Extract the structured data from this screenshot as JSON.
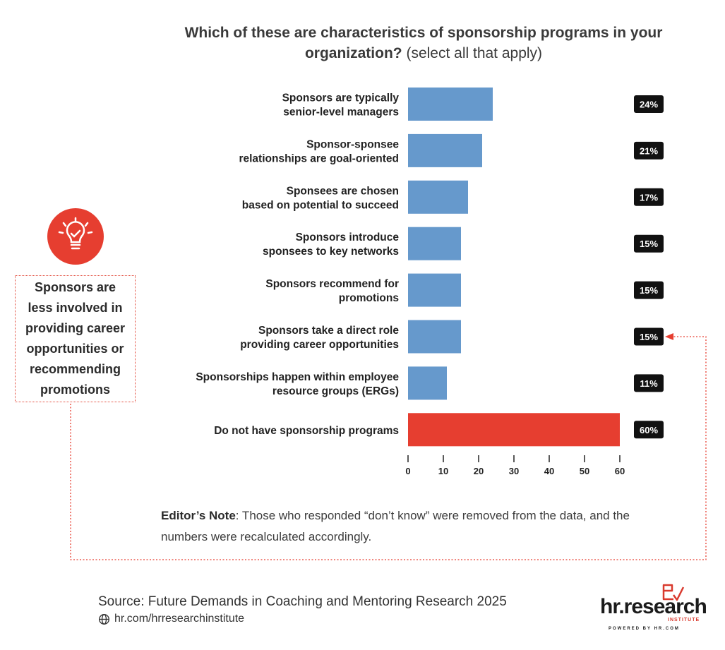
{
  "title": {
    "bold": "Which of these are characteristics of sponsorship programs in your organization?",
    "normal": "(select all that apply)"
  },
  "chart_data": {
    "type": "bar",
    "orientation": "horizontal",
    "categories": [
      [
        "Sponsors are typically",
        "senior-level managers"
      ],
      [
        "Sponsor-sponsee",
        "relationships are goal-oriented"
      ],
      [
        "Sponsees are chosen",
        "based on potential to succeed"
      ],
      [
        "Sponsors introduce",
        "sponsees to key networks"
      ],
      [
        "Sponsors recommend for",
        "promotions"
      ],
      [
        "Sponsors take a direct role",
        "providing career opportunities"
      ],
      [
        "Sponsorships happen within employee",
        "resource groups (ERGs)"
      ],
      [
        "Do not have sponsorship programs"
      ]
    ],
    "values": [
      24,
      21,
      17,
      15,
      15,
      15,
      11,
      60
    ],
    "value_labels": [
      "24%",
      "21%",
      "17%",
      "15%",
      "15%",
      "15%",
      "11%",
      "60%"
    ],
    "bar_colors": [
      "#6699cc",
      "#6699cc",
      "#6699cc",
      "#6699cc",
      "#6699cc",
      "#6699cc",
      "#6699cc",
      "#e63e30"
    ],
    "xticks": [
      0,
      10,
      20,
      30,
      40,
      50,
      60
    ],
    "xlim": [
      0,
      60
    ],
    "grid": false,
    "highlight_index": 5
  },
  "callout": {
    "text": "Sponsors are less involved in providing career opportunities or recommending promotions",
    "icon": "lightbulb-check-icon"
  },
  "editor_note": {
    "label": "Editor’s Note",
    "text": ": Those who responded “don’t know” were removed from the data, and the numbers were recalculated accordingly."
  },
  "source": {
    "text": "Source:  Future Demands in Coaching and Mentoring Research 2025",
    "url": "hr.com/hrresearchinstitute"
  },
  "logo": {
    "text": "hr.research",
    "sub": "INSTITUTE",
    "powered": "POWERED BY HR.COM"
  },
  "colors": {
    "accent_red": "#e63e30",
    "bar_blue": "#6699cc",
    "badge_bg": "#111111"
  }
}
